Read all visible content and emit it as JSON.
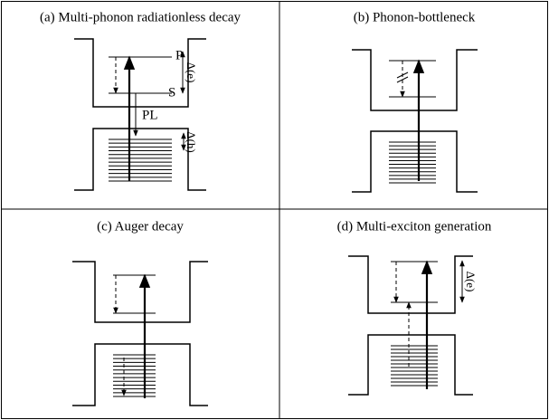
{
  "panels": [
    {
      "title": "(a) Multi-phonon radiationless decay",
      "labels": {
        "p": "P",
        "s": "S",
        "pl": "PL",
        "delta_e": "Δ(e)",
        "delta_h": "Δ(h)"
      }
    },
    {
      "title": "(b) Phonon-bottleneck"
    },
    {
      "title": "(c) Auger decay"
    },
    {
      "title": "(d) Multi-exciton generation",
      "labels": {
        "delta_e": "Δ(e)"
      }
    }
  ]
}
